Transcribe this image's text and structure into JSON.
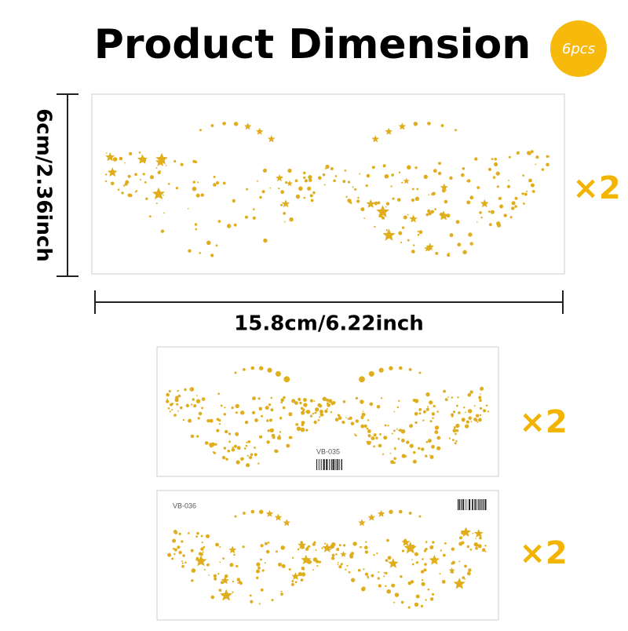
{
  "header": {
    "title": "Product Dimension",
    "badge": "6pcs"
  },
  "dimensions": {
    "height": "6cm/2.36inch",
    "width": "15.8cm/6.22inch"
  },
  "items": [
    {
      "quantity": "×2"
    },
    {
      "quantity": "×2",
      "code": "VB-035"
    },
    {
      "quantity": "×2",
      "code": "VB-036"
    }
  ]
}
